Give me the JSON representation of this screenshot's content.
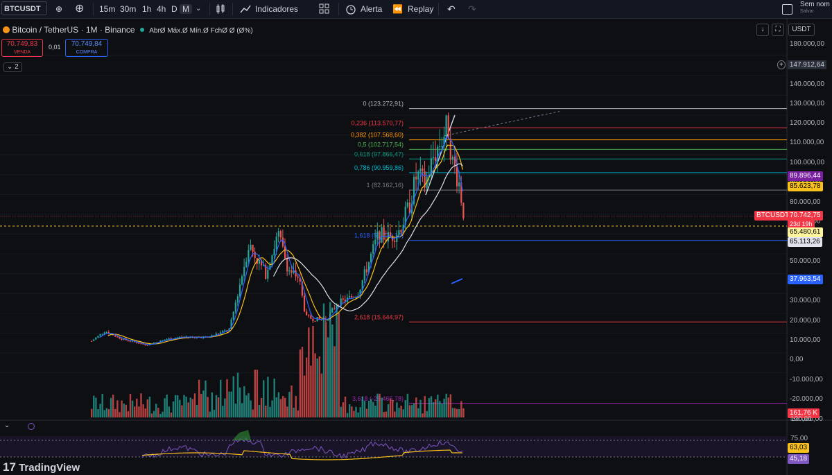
{
  "toolbar": {
    "symbol": "BTCUSDT",
    "timeframes": [
      "15m",
      "30m",
      "1h",
      "4h",
      "D",
      "M"
    ],
    "active_timeframe": "M",
    "indicators_label": "Indicadores",
    "alert_label": "Alerta",
    "replay_label": "Replay",
    "account_label": "Sem nom",
    "save_label": "Salvar"
  },
  "legend": {
    "title": "Bitcoin / TetherUS · 1M · Binance",
    "ohlc": "AbrØ Máx.Ø Mín.Ø FchØ Ø (Ø%)",
    "sell_price": "70.749,83",
    "sell_label": "VENDA",
    "spread": "0,01",
    "buy_price": "70.749,84",
    "buy_label": "COMPRA",
    "collapse": "2"
  },
  "top_right": {
    "currency": "USDT"
  },
  "price_scale": {
    "ticks": [
      "180.000,00",
      "160.000,00",
      "140.000,00",
      "130.000,00",
      "120.000,00",
      "110.000,00",
      "100.000,00",
      "90.000,00",
      "80.000,00",
      "70.000,00",
      "60.000,00",
      "50.000,00",
      "40.000,00",
      "30.000,00",
      "20.000,00",
      "10.000,00",
      "0,00",
      "-10.000,00",
      "-20.000,00",
      "-30.000,00"
    ],
    "top_label": "147.912,64",
    "labels": {
      "p1": "89.896,44",
      "p2": "85.623,78",
      "symbol_tag": "BTCUSDT",
      "last": "70.742,75",
      "countdown": "23d 19h",
      "ma1": "65.480,61",
      "ma2": "65.113,26",
      "p3": "37.963,54",
      "volume": "161,76 K"
    }
  },
  "fib": [
    {
      "label": "0 (123.272,91)",
      "price": 123272.91,
      "color": "#b2b5be"
    },
    {
      "label": "0,236 (113.570,77)",
      "price": 113570.77,
      "color": "#f23645"
    },
    {
      "label": "0,382 (107.568,60)",
      "price": 107568.6,
      "color": "#ff9800"
    },
    {
      "label": "0,5 (102.717,54)",
      "price": 102717.54,
      "color": "#4caf50"
    },
    {
      "label": "0,618 (97.866,47)",
      "price": 97866.47,
      "color": "#089981"
    },
    {
      "label": "0,786 (90.959,86)",
      "price": 90959.86,
      "color": "#00bcd4"
    },
    {
      "label": "1 (82.162,16)",
      "price": 82162.16,
      "color": "#787b86"
    },
    {
      "label": "1,618 (56.779,10)",
      "price": 56779.1,
      "color": "#2962ff"
    },
    {
      "label": "2,618 (15.644,97)",
      "price": 15644.97,
      "color": "#f23645"
    },
    {
      "label": "3,618 (-25.465,78)",
      "price": -25465.78,
      "color": "#9c27b0"
    }
  ],
  "rsi": {
    "ticks": [
      "100,00",
      "75,00"
    ],
    "value_ma": "63,03",
    "value_rsi": "45,18"
  },
  "watermark": "TradingView",
  "colors": {
    "up": "#26a69a",
    "down": "#ef5350",
    "bg": "#0e0f13"
  }
}
